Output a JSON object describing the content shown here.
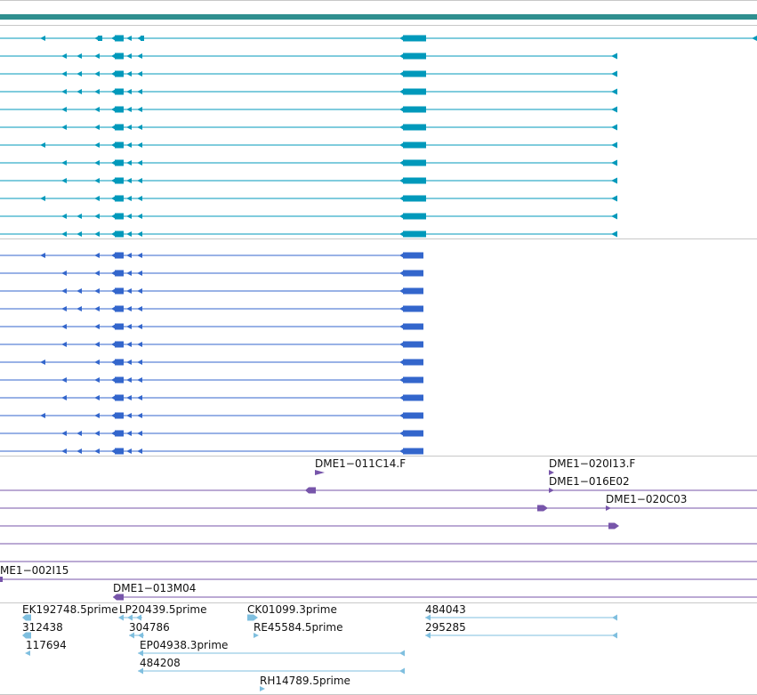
{
  "colors": {
    "gene_track": "#2f8f8f",
    "transcript": "#0099bb",
    "cds": "#3366cc",
    "clone": "#7755aa",
    "est": "#7fbfdf",
    "divider": "#c8c8c8",
    "text": "#111111"
  },
  "icons": {
    "reverse_strand_arrow": "arrow-left-icon",
    "forward_strand_arrow": "arrow-right-icon"
  },
  "clones": [
    {
      "label": "DME1−011C14.F"
    },
    {
      "label": "DME1−020I13.F"
    },
    {
      "label": "DME1−016E02"
    },
    {
      "label": "DME1−020C03"
    },
    {
      "label": "ME1−002I15"
    },
    {
      "label": "DME1−013M04"
    }
  ],
  "ests": [
    {
      "label": "EK192748.5prime"
    },
    {
      "label": "LP20439.5prime"
    },
    {
      "label": "CK01099.3prime"
    },
    {
      "label": "484043"
    },
    {
      "label": "312438"
    },
    {
      "label": "304786"
    },
    {
      "label": "RE45584.5prime"
    },
    {
      "label": "295285"
    },
    {
      "label": "117694"
    },
    {
      "label": "EP04938.3prime"
    },
    {
      "label": "484208"
    },
    {
      "label": "RH14789.5prime"
    }
  ]
}
